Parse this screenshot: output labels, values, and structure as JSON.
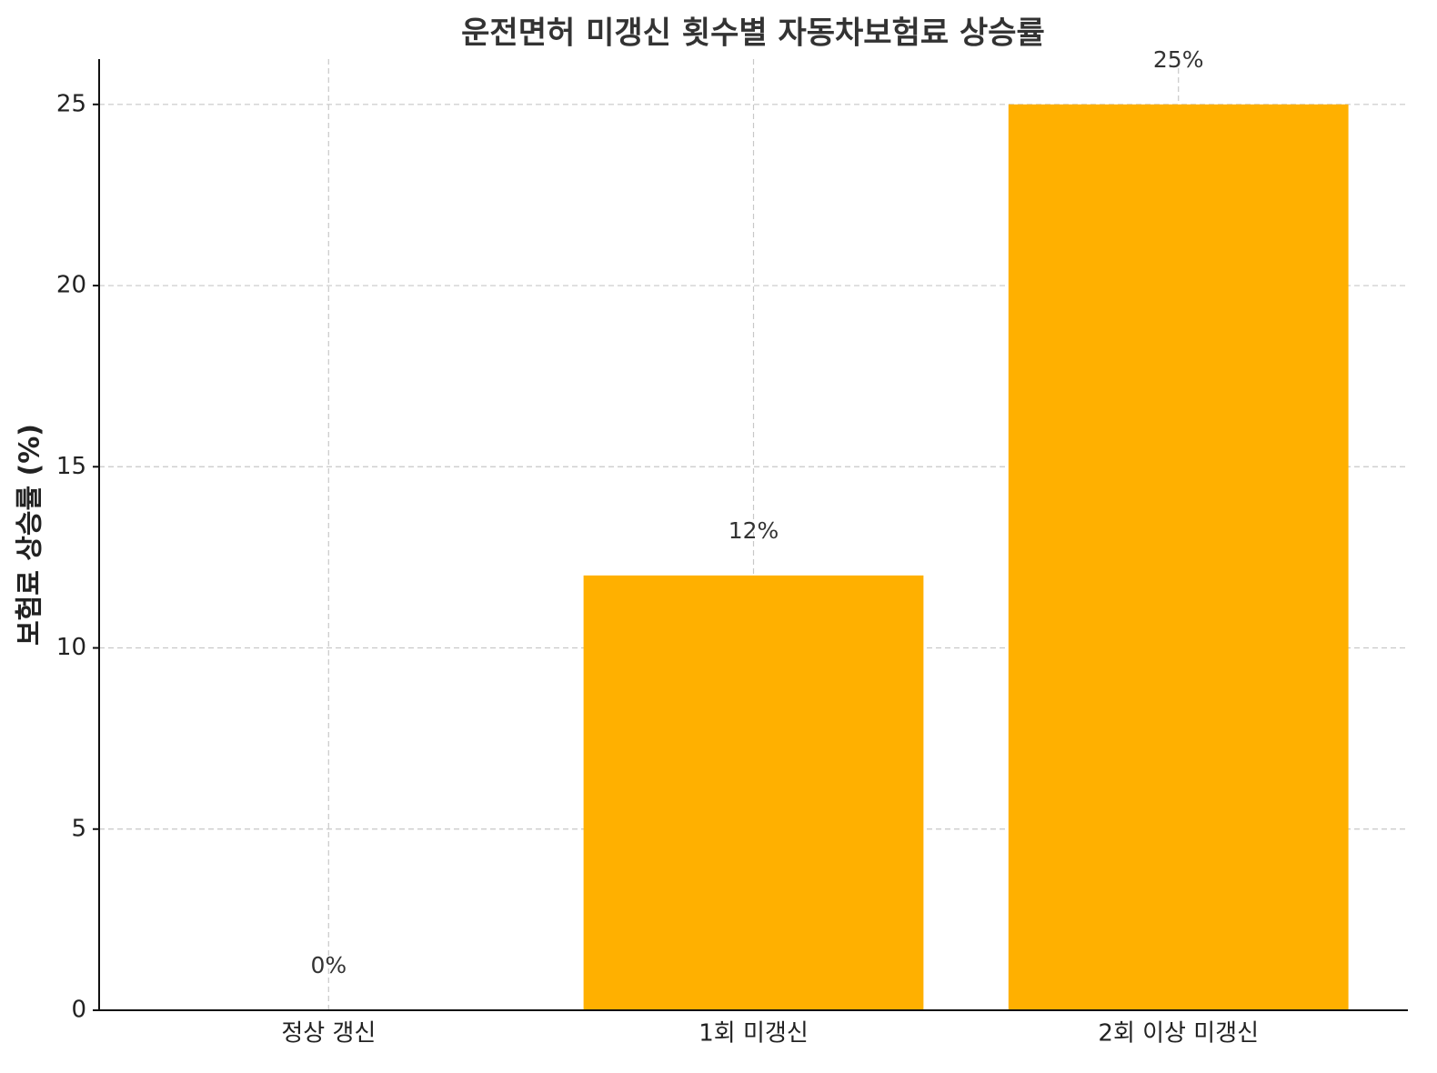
{
  "chart_data": {
    "type": "bar",
    "title": "운전면허 미갱신 횟수별 자동차보험료 상승률",
    "y_label": "보험료 상승률 (%)",
    "categories": [
      "정상 갱신",
      "1회 미갱신",
      "2회 이상 미갱신"
    ],
    "values": [
      0,
      12,
      25
    ],
    "value_labels": [
      "0%",
      "12%",
      "25%"
    ],
    "color": "#ffb000",
    "ylim": [
      0,
      26.25
    ],
    "yticks": [
      0,
      5,
      10,
      15,
      20,
      25
    ],
    "grid": true
  }
}
